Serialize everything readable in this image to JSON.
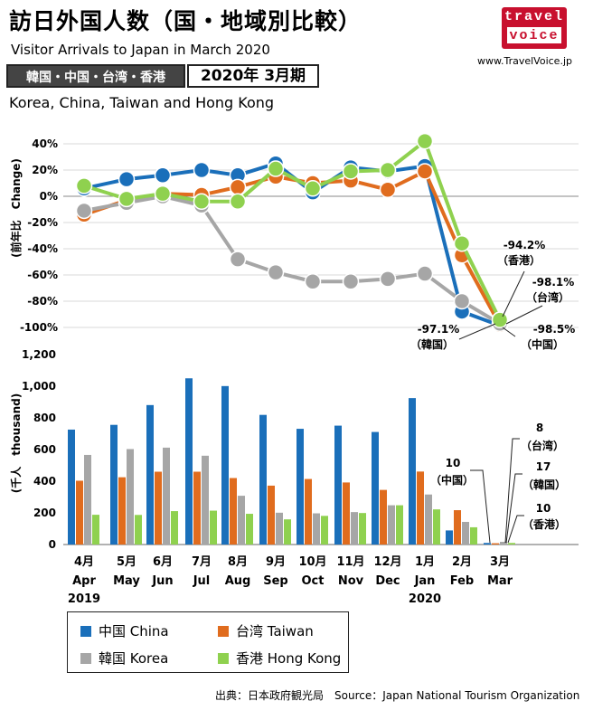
{
  "header": {
    "title": "訪日外国人数（国・地域別比較）",
    "subtitle": "Visitor Arrivals to Japan in March 2020",
    "site": "www.TravelVoice.jp",
    "logo_line1": "travel",
    "logo_line2": "voice",
    "region_badge": "韓国・中国・台湾・香港",
    "period_badge": "2020年 3月期",
    "region_en": "Korea, China, Taiwan and Hong Kong"
  },
  "legend": {
    "china": "中国 China",
    "taiwan": "台湾 Taiwan",
    "korea": "韓国 Korea",
    "hongkong": "香港 Hong Kong"
  },
  "source": "出典：日本政府観光局　Source：Japan  National Tourism  Organization",
  "colors": {
    "china": "#1a6fba",
    "taiwan": "#e06c1e",
    "korea": "#a6a6a6",
    "hongkong": "#8fd14f"
  },
  "chart_data": [
    {
      "type": "line",
      "ylabel": "(前年比　Change)",
      "ylim": [
        -100,
        40
      ],
      "yticks": [
        "40%",
        "20%",
        "0%",
        "-20%",
        "-40%",
        "-60%",
        "-80%",
        "-100%"
      ],
      "grid": true,
      "categories": [
        "4月 Apr 2019",
        "5月 May",
        "6月 Jun",
        "7月 Jul",
        "8月 Aug",
        "9月 Sep",
        "10月 Oct",
        "11月 Nov",
        "12月 Dec",
        "1月 Jan 2020",
        "2月 Feb",
        "3月 Mar"
      ],
      "series": [
        {
          "name": "中国 China",
          "color": "#1a6fba",
          "values": [
            6,
            13,
            16,
            20,
            16,
            25,
            3,
            22,
            19,
            23,
            -87.9,
            -98.5
          ]
        },
        {
          "name": "台湾 Taiwan",
          "color": "#e06c1e",
          "values": [
            -14,
            -3,
            2,
            1,
            7,
            15,
            10,
            12,
            5,
            19,
            -45,
            -98.1
          ]
        },
        {
          "name": "韓国 Korea",
          "color": "#a6a6a6",
          "values": [
            -11,
            -5,
            0,
            -7,
            -48,
            -58,
            -65,
            -65,
            -63,
            -59,
            -80,
            -97.1
          ]
        },
        {
          "name": "香港 Hong Kong",
          "color": "#8fd14f",
          "values": [
            8,
            -2,
            2,
            -4,
            -4,
            21,
            6,
            19,
            20,
            42,
            -36,
            -94.2
          ]
        }
      ],
      "annotations": [
        {
          "value": "-94.2%",
          "label": "（香港）"
        },
        {
          "value": "-98.1%",
          "label": "（台湾）"
        },
        {
          "value": "-97.1%",
          "label": "（韓国）"
        },
        {
          "value": "-98.5%",
          "label": "（中国）"
        }
      ]
    },
    {
      "type": "bar",
      "ylabel": "(千人　thousand)",
      "ylim": [
        0,
        1200
      ],
      "yticks": [
        "1,200",
        "1,000",
        "800",
        "600",
        "400",
        "200",
        "0"
      ],
      "x_month_labels": [
        "4月",
        "5月",
        "6月",
        "7月",
        "8月",
        "9月",
        "10月",
        "11月",
        "12月",
        "1月",
        "2月",
        "3月"
      ],
      "x_en_labels": [
        "Apr",
        "May",
        "Jun",
        "Jul",
        "Aug",
        "Sep",
        "Oct",
        "Nov",
        "Dec",
        "Jan",
        "Feb",
        "Mar"
      ],
      "x_year_labels": [
        "2019",
        "2020"
      ],
      "series": [
        {
          "name": "中国 China",
          "color": "#1a6fba",
          "values": [
            726,
            756,
            881,
            1050,
            1001,
            819,
            731,
            751,
            711,
            925,
            89,
            10
          ]
        },
        {
          "name": "台湾 Taiwan",
          "color": "#e06c1e",
          "values": [
            403,
            425,
            460,
            460,
            420,
            372,
            414,
            392,
            345,
            461,
            217,
            8
          ]
        },
        {
          "name": "韓国 Korea",
          "color": "#a6a6a6",
          "values": [
            566,
            603,
            612,
            561,
            308,
            201,
            197,
            205,
            248,
            316,
            143,
            17
          ]
        },
        {
          "name": "香港 Hong Kong",
          "color": "#8fd14f",
          "values": [
            188,
            187,
            211,
            214,
            194,
            159,
            181,
            199,
            248,
            222,
            109,
            10
          ]
        }
      ],
      "annotations": [
        {
          "value": "8",
          "label": "（台湾）"
        },
        {
          "value": "10",
          "label": "（中国）"
        },
        {
          "value": "17",
          "label": "（韓国）"
        },
        {
          "value": "10",
          "label": "（香港）"
        }
      ]
    }
  ]
}
